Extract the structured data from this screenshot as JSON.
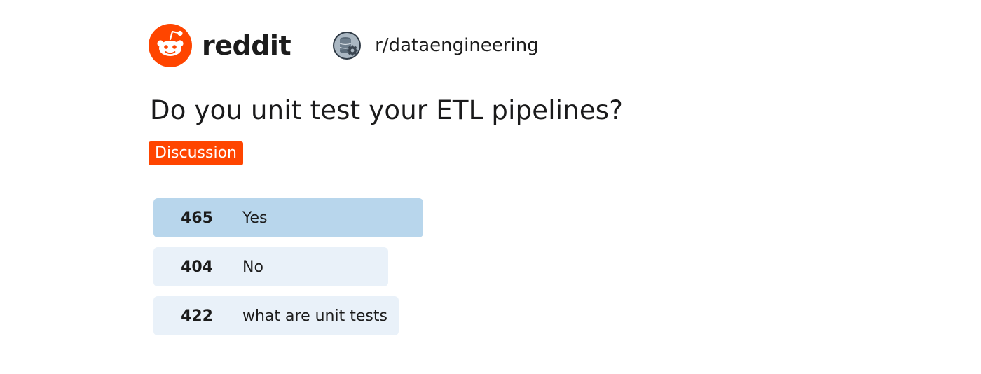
{
  "header": {
    "logo_icon": "reddit-snoo-icon",
    "wordmark": "reddit",
    "brand_color": "#ff4500",
    "subreddit": {
      "icon": "database-gear-icon",
      "name": "r/dataengineering"
    }
  },
  "post": {
    "title": "Do you unit test your ETL pipelines?",
    "flair": "Discussion",
    "flair_color": "#ff4500"
  },
  "poll": {
    "options": [
      {
        "votes": "465",
        "label": "Yes",
        "winner": true
      },
      {
        "votes": "404",
        "label": "No",
        "winner": false
      },
      {
        "votes": "422",
        "label": "what are unit tests",
        "winner": false
      }
    ],
    "winner_color": "#b8d6ec",
    "option_color": "#e9f1f9"
  }
}
